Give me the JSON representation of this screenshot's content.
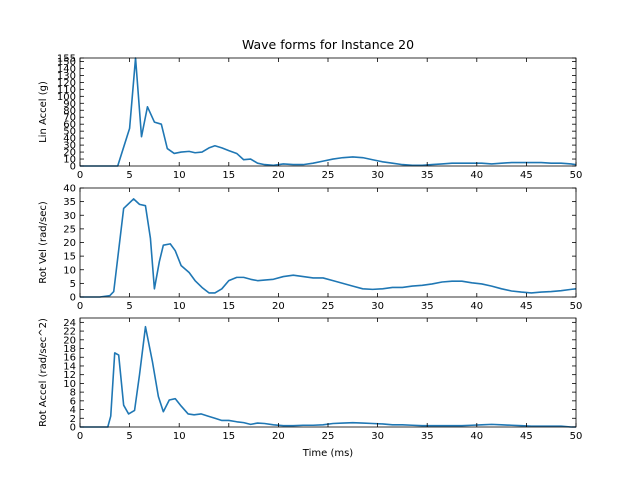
{
  "title": "Wave forms for Instance 20",
  "xlabel": "Time (ms)",
  "colors": {
    "line": "#1f77b4",
    "axes": "#000000",
    "background": "#ffffff"
  },
  "chart_data": [
    {
      "type": "line",
      "ylabel": "Lin Accel (g)",
      "xlim": [
        0,
        50
      ],
      "ylim": [
        0,
        155
      ],
      "xticks": [
        0,
        5,
        10,
        15,
        20,
        25,
        30,
        35,
        40,
        45,
        50
      ],
      "yticks": [
        0,
        10,
        20,
        30,
        40,
        50,
        60,
        70,
        80,
        90,
        100,
        110,
        120,
        130,
        140,
        150,
        155
      ],
      "grid": false,
      "x": [
        0,
        1,
        2,
        3,
        3.8,
        5,
        5.6,
        6.2,
        6.8,
        7.5,
        8.2,
        8.8,
        9.5,
        10.2,
        11,
        11.6,
        12.3,
        13,
        13.6,
        14.3,
        15,
        15.8,
        16.5,
        17.2,
        17.9,
        18.6,
        19.5,
        20.5,
        21.5,
        22.5,
        23.5,
        24.5,
        25.5,
        26.5,
        27.5,
        28.5,
        29.5,
        30.5,
        31.5,
        32.5,
        33.5,
        34.5,
        35.5,
        36.5,
        37.5,
        38.5,
        39.5,
        40.5,
        41.5,
        42.5,
        43.5,
        44.5,
        45.5,
        46.5,
        47.5,
        48.5,
        49.5,
        50
      ],
      "y": [
        0,
        0,
        0,
        0,
        0,
        54,
        155,
        42,
        85,
        63,
        60,
        25,
        18,
        20,
        21,
        19,
        20,
        26,
        29,
        26,
        22,
        18,
        9,
        10,
        4,
        2,
        1,
        3,
        2,
        2,
        4,
        7,
        10,
        12,
        13,
        12,
        9,
        6,
        4,
        2,
        1,
        1,
        2,
        3,
        4,
        4,
        4,
        4,
        3,
        4,
        5,
        5,
        5,
        5,
        4,
        4,
        3,
        2
      ]
    },
    {
      "type": "line",
      "ylabel": "Rot Vel (rad/sec)",
      "xlim": [
        0,
        50
      ],
      "ylim": [
        0,
        40
      ],
      "xticks": [
        0,
        5,
        10,
        15,
        20,
        25,
        30,
        35,
        40,
        45,
        50
      ],
      "yticks": [
        0,
        5,
        10,
        15,
        20,
        25,
        30,
        35,
        40
      ],
      "grid": false,
      "x": [
        0,
        1,
        2,
        3,
        3.4,
        4.4,
        5.4,
        6,
        6.6,
        7.1,
        7.5,
        8,
        8.4,
        9.1,
        9.6,
        10.2,
        11,
        11.6,
        12.3,
        13,
        13.6,
        14.3,
        15,
        15.8,
        16.5,
        17.2,
        17.9,
        18.6,
        19.5,
        20.5,
        21.5,
        22.5,
        23.5,
        24.5,
        25.5,
        26.5,
        27.5,
        28.5,
        29.5,
        30.5,
        31.5,
        32.5,
        33.5,
        34.5,
        35.5,
        36.5,
        37.5,
        38.5,
        39.5,
        40.5,
        41.5,
        42.5,
        43.5,
        44.5,
        45.5,
        46.5,
        47.5,
        48.5,
        49.5,
        50
      ],
      "y": [
        0,
        0,
        0,
        0.5,
        2,
        32.5,
        36,
        34,
        33.5,
        21.5,
        3,
        13,
        19,
        19.5,
        17,
        11.5,
        9,
        6,
        3.5,
        1.5,
        1.5,
        3,
        6,
        7.2,
        7.2,
        6.5,
        6,
        6.2,
        6.5,
        7.5,
        8,
        7.5,
        7,
        7,
        6,
        5,
        4,
        3,
        2.8,
        3,
        3.5,
        3.5,
        4,
        4.3,
        4.8,
        5.5,
        5.8,
        5.8,
        5.2,
        4.8,
        4,
        3,
        2.2,
        1.8,
        1.5,
        1.8,
        2,
        2.3,
        2.8,
        3
      ]
    },
    {
      "type": "line",
      "ylabel": "Rot Accel (rad/sec^2)",
      "xlim": [
        0,
        50
      ],
      "ylim": [
        0,
        25
      ],
      "xticks": [
        0,
        5,
        10,
        15,
        20,
        25,
        30,
        35,
        40,
        45,
        50
      ],
      "yticks": [
        0,
        2,
        4,
        6,
        8,
        10,
        12,
        14,
        16,
        18,
        20,
        22,
        24
      ],
      "grid": false,
      "x": [
        0,
        1,
        2,
        2.8,
        3.1,
        3.5,
        3.9,
        4.4,
        4.9,
        5.5,
        6,
        6.6,
        7.3,
        7.9,
        8.4,
        9,
        9.6,
        10.2,
        10.9,
        11.5,
        12.2,
        12.9,
        13.6,
        14.3,
        15,
        15.8,
        16.5,
        17.2,
        17.9,
        18.6,
        19.5,
        20.5,
        21.5,
        22.5,
        23.5,
        24.5,
        25.5,
        26.5,
        27.5,
        28.5,
        29.5,
        30.5,
        31.5,
        32.5,
        33.5,
        34.5,
        35.5,
        36.5,
        37.5,
        38.5,
        39.5,
        40.5,
        41.5,
        42.5,
        43.5,
        44.5,
        45.5,
        46.5,
        47.5,
        48.5,
        49.5,
        50
      ],
      "y": [
        0,
        0,
        0,
        0,
        2.5,
        17,
        16.5,
        5,
        3,
        3.8,
        12,
        23,
        15,
        7,
        3.5,
        6.2,
        6.5,
        4.8,
        3,
        2.8,
        3,
        2.5,
        2,
        1.5,
        1.5,
        1.2,
        1,
        0.6,
        0.9,
        0.8,
        0.5,
        0.3,
        0.3,
        0.4,
        0.4,
        0.5,
        0.8,
        0.9,
        1,
        0.9,
        0.8,
        0.7,
        0.5,
        0.5,
        0.4,
        0.3,
        0.3,
        0.3,
        0.3,
        0.3,
        0.4,
        0.5,
        0.6,
        0.5,
        0.4,
        0.3,
        0.2,
        0.2,
        0.2,
        0.2,
        0,
        0
      ]
    }
  ]
}
